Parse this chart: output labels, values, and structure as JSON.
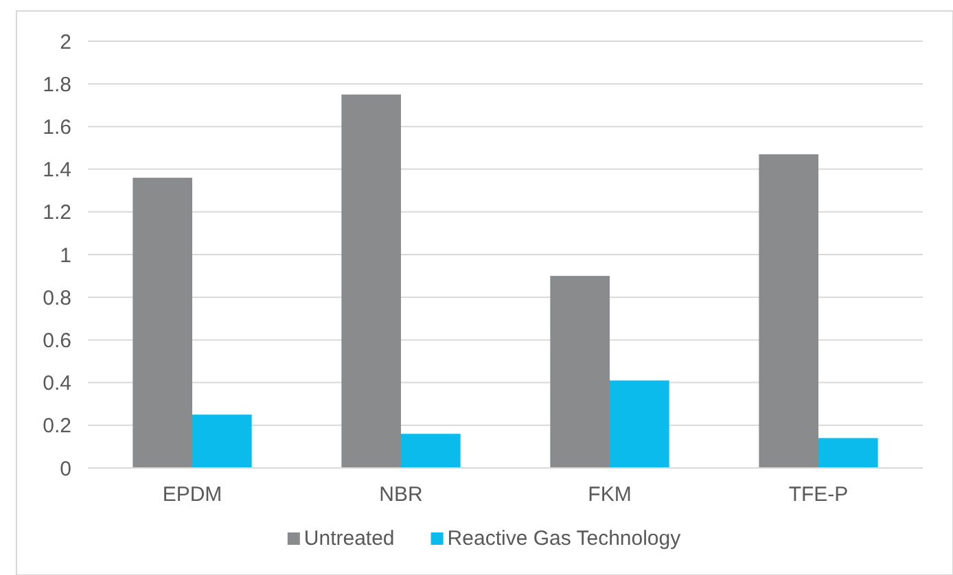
{
  "chart_data": {
    "type": "bar",
    "categories": [
      "EPDM",
      "NBR",
      "FKM",
      "TFE-P"
    ],
    "series": [
      {
        "name": "Untreated",
        "color": "#8a8b8d",
        "values": [
          1.36,
          1.75,
          0.9,
          1.47
        ]
      },
      {
        "name": "Reactive Gas Technology",
        "color": "#0bbbeb",
        "values": [
          0.25,
          0.16,
          0.41,
          0.14
        ]
      }
    ],
    "ylim": [
      0,
      2
    ],
    "yticks": [
      0,
      0.2,
      0.4,
      0.6,
      0.8,
      1,
      1.2,
      1.4,
      1.6,
      1.8,
      2
    ],
    "grid": "y",
    "legend": "bottom"
  }
}
